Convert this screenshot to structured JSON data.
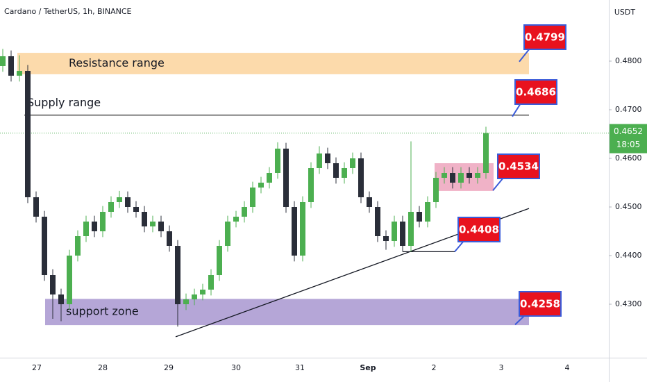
{
  "chart_data": {
    "type": "candlestick",
    "title": "Cardano / TetherUS, 1h, BINANCE",
    "y_axis_label": "USDT",
    "up_color": "#4caf50",
    "down_color": "#2a2e39",
    "open": [
      0.479,
      0.481,
      0.477,
      0.478,
      0.452,
      0.448,
      0.436,
      0.432,
      0.43,
      0.44,
      0.444,
      0.447,
      0.445,
      0.449,
      0.451,
      0.452,
      0.45,
      0.449,
      0.446,
      0.447,
      0.445,
      0.442,
      0.43,
      0.431,
      0.432,
      0.433,
      0.436,
      0.442,
      0.447,
      0.448,
      0.45,
      0.454,
      0.455,
      0.457,
      0.462,
      0.45,
      0.44,
      0.451,
      0.458,
      0.461,
      0.459,
      0.456,
      0.458,
      0.46,
      0.452,
      0.45,
      0.444,
      0.443,
      0.447,
      0.442,
      0.449,
      0.447,
      0.451,
      0.456,
      0.457,
      0.455,
      0.457,
      0.456,
      0.457
    ],
    "high": [
      0.4825,
      0.4822,
      0.4812,
      0.4792,
      0.4532,
      0.4492,
      0.4372,
      0.4332,
      0.4412,
      0.4452,
      0.4482,
      0.4482,
      0.4502,
      0.4522,
      0.4533,
      0.4532,
      0.4512,
      0.4502,
      0.4482,
      0.4482,
      0.4462,
      0.4432,
      0.4322,
      0.4332,
      0.4342,
      0.4372,
      0.4432,
      0.4482,
      0.4492,
      0.4512,
      0.4552,
      0.4562,
      0.4582,
      0.4633,
      0.4632,
      0.4512,
      0.4522,
      0.4592,
      0.4625,
      0.4622,
      0.4602,
      0.4592,
      0.4612,
      0.4612,
      0.4532,
      0.4512,
      0.4452,
      0.4482,
      0.4482,
      0.4635,
      0.4502,
      0.4522,
      0.4572,
      0.4582,
      0.4582,
      0.4582,
      0.4582,
      0.4582,
      0.4665
    ],
    "low": [
      0.4778,
      0.4758,
      0.4758,
      0.4508,
      0.4468,
      0.4348,
      0.427,
      0.4265,
      0.4288,
      0.4388,
      0.4428,
      0.4438,
      0.4438,
      0.4478,
      0.4498,
      0.4488,
      0.4478,
      0.4448,
      0.4448,
      0.4438,
      0.4408,
      0.4254,
      0.4288,
      0.4298,
      0.4308,
      0.4318,
      0.4348,
      0.4408,
      0.4458,
      0.4468,
      0.4488,
      0.4528,
      0.4538,
      0.4558,
      0.4488,
      0.4388,
      0.4388,
      0.4498,
      0.4568,
      0.4578,
      0.4548,
      0.4548,
      0.4568,
      0.4508,
      0.4488,
      0.4428,
      0.4412,
      0.4418,
      0.4408,
      0.4408,
      0.4458,
      0.4458,
      0.4498,
      0.4548,
      0.4538,
      0.4538,
      0.4548,
      0.4548,
      0.4558
    ],
    "close": [
      0.481,
      0.477,
      0.478,
      0.452,
      0.448,
      0.436,
      0.432,
      0.43,
      0.44,
      0.444,
      0.447,
      0.445,
      0.449,
      0.451,
      0.452,
      0.45,
      0.449,
      0.446,
      0.447,
      0.445,
      0.442,
      0.43,
      0.431,
      0.432,
      0.433,
      0.436,
      0.442,
      0.447,
      0.448,
      0.45,
      0.454,
      0.455,
      0.457,
      0.462,
      0.45,
      0.44,
      0.451,
      0.458,
      0.461,
      0.459,
      0.456,
      0.458,
      0.46,
      0.452,
      0.45,
      0.444,
      0.443,
      0.447,
      0.442,
      0.449,
      0.447,
      0.451,
      0.456,
      0.457,
      0.455,
      0.457,
      0.456,
      0.457,
      0.4652
    ],
    "x_labels": [
      "27",
      "28",
      "29",
      "30",
      "31",
      "Sep",
      "2",
      "3",
      "4"
    ],
    "ylim": [
      0.41943,
      0.49257
    ],
    "yticks": [
      {
        "value": 0.43,
        "label": "0.4300"
      },
      {
        "value": 0.44,
        "label": "0.4400"
      },
      {
        "value": 0.45,
        "label": "0.4500"
      },
      {
        "value": 0.46,
        "label": "0.4600"
      },
      {
        "value": 0.47,
        "label": "0.4700"
      },
      {
        "value": 0.48,
        "label": "0.4800"
      }
    ],
    "last_price": 0.4652,
    "countdown": "18:05",
    "zones": [
      {
        "label": "Resistance range",
        "low": 0.4773,
        "high": 0.4817,
        "color": "#fbd39c"
      },
      {
        "label": "support zone",
        "low": 0.4257,
        "high": 0.4311,
        "color": "#a896d0"
      }
    ],
    "supply_line": {
      "label": "Supply range",
      "value": 0.4689
    },
    "consolidation_box": {
      "low": 0.4533,
      "high": 0.459,
      "color": "#eda5bd"
    },
    "trendline": {
      "start": 0.4233,
      "end": 0.4497
    },
    "support_line": 0.4408,
    "callouts": [
      0.4799,
      0.4686,
      0.4534,
      0.4408,
      0.4258
    ]
  }
}
